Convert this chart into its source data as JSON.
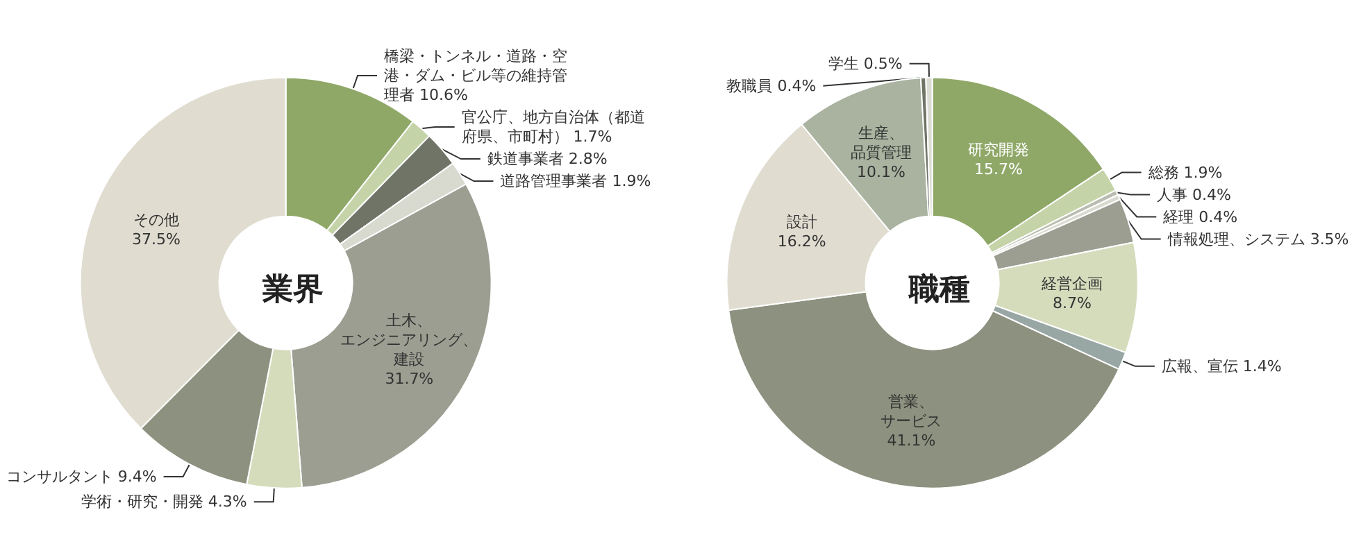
{
  "chart_data": [
    {
      "type": "donut",
      "title": "業界",
      "categories": [
        "橋梁・トンネル・道路・空港・ダム・ビル等の維持管理者",
        "官公庁、地方自治体（都道府県、市町村）",
        "鉄道事業者",
        "道路管理事業者",
        "土木、エンジニアリング、建設",
        "学術・研究・開発",
        "コンサルタント",
        "その他"
      ],
      "values": [
        10.6,
        1.7,
        2.8,
        1.9,
        31.7,
        4.3,
        9.4,
        37.5
      ],
      "value_labels": [
        "10.6%",
        "1.7%",
        "2.8%",
        "1.9%",
        "31.7%",
        "4.3%",
        "9.4%",
        "37.5%"
      ],
      "colors": [
        "#8fa868",
        "#c5d4a8",
        "#6f7467",
        "#d8dad0",
        "#9c9e92",
        "#d4dcbc",
        "#8d917f",
        "#e0ddd0"
      ]
    },
    {
      "type": "donut",
      "title": "職種",
      "categories": [
        "研究開発",
        "総務",
        "人事",
        "経理",
        "情報処理、システム",
        "経営企画",
        "広報、宣伝",
        "営業、サービス",
        "設計",
        "生産、品質管理",
        "教職員",
        "学生"
      ],
      "values": [
        15.7,
        1.9,
        0.4,
        0.4,
        3.5,
        8.7,
        1.4,
        41.1,
        16.2,
        10.1,
        0.4,
        0.5
      ],
      "value_labels": [
        "15.7%",
        "1.9%",
        "0.4%",
        "0.4%",
        "3.5%",
        "8.7%",
        "1.4%",
        "41.1%",
        "16.2%",
        "10.1%",
        "0.4%",
        "0.5%"
      ],
      "colors": [
        "#8fa868",
        "#c5d4a8",
        "#b9bdb0",
        "#d8dad0",
        "#9c9e92",
        "#d4dcbc",
        "#98a6a4",
        "#8d917f",
        "#e0ddd0",
        "#a9b3a0",
        "#6f7467",
        "#dcdcd4"
      ]
    }
  ]
}
